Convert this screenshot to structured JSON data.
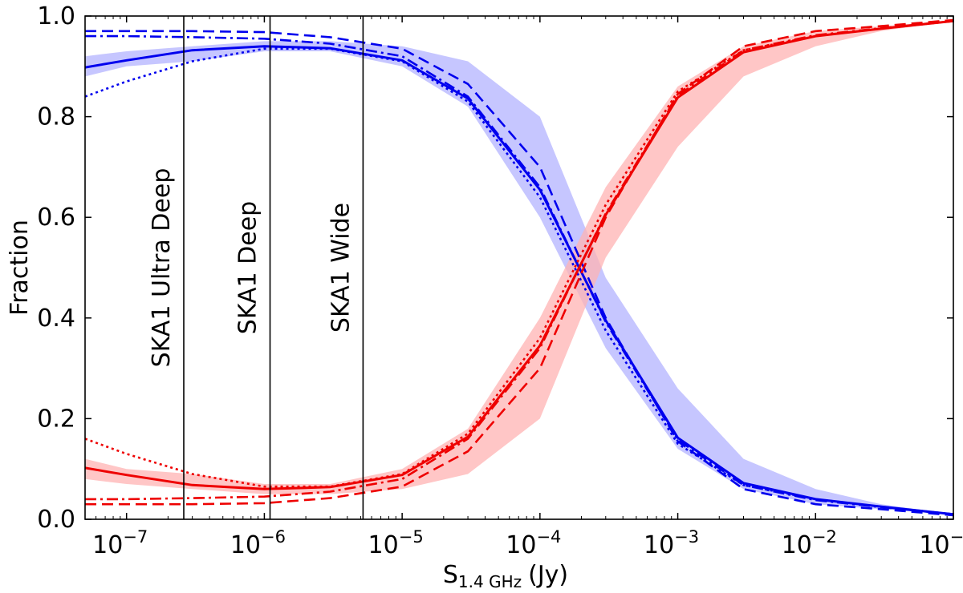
{
  "chart_data": {
    "type": "line",
    "xscale": "log",
    "xlim": [
      5e-08,
      0.1
    ],
    "ylim": [
      0,
      1
    ],
    "xlabel_main": "S",
    "xlabel_sub": "1.4 GHz",
    "xlabel_unit": "(Jy)",
    "ylabel": "Fraction",
    "x_ticks": [
      {
        "value": 1e-07,
        "base": "10",
        "exp": "−7"
      },
      {
        "value": 1e-06,
        "base": "10",
        "exp": "−6"
      },
      {
        "value": 1e-05,
        "base": "10",
        "exp": "−5"
      },
      {
        "value": 0.0001,
        "base": "10",
        "exp": "−4"
      },
      {
        "value": 0.001,
        "base": "10",
        "exp": "−3"
      },
      {
        "value": 0.01,
        "base": "10",
        "exp": "−2"
      },
      {
        "value": 0.1,
        "base": "10",
        "exp": "−1"
      }
    ],
    "y_ticks": [
      {
        "value": 0.0,
        "label": "0.0"
      },
      {
        "value": 0.2,
        "label": "0.2"
      },
      {
        "value": 0.4,
        "label": "0.4"
      },
      {
        "value": 0.6,
        "label": "0.6"
      },
      {
        "value": 0.8,
        "label": "0.8"
      },
      {
        "value": 1.0,
        "label": "1.0"
      }
    ],
    "survey_limits": [
      {
        "x": 2.6e-07,
        "label": "SKA1 Ultra Deep"
      },
      {
        "x": 1.1e-06,
        "label": "SKA1 Deep"
      },
      {
        "x": 5.2e-06,
        "label": "SKA1 Wide"
      }
    ],
    "x": [
      5e-08,
      1e-07,
      3e-07,
      1e-06,
      3e-06,
      1e-05,
      3e-05,
      0.0001,
      0.0003,
      0.001,
      0.003,
      0.01,
      0.03,
      0.1
    ],
    "colors": {
      "blue": "#0000ee",
      "red": "#ee0000",
      "blue_band": "#b3b3ff",
      "red_band": "#ffb3b3"
    },
    "bands": [
      {
        "color": "blue",
        "lower": [
          0.88,
          0.9,
          0.91,
          0.93,
          0.93,
          0.9,
          0.82,
          0.6,
          0.34,
          0.14,
          0.06,
          0.03,
          0.02,
          0.01
        ],
        "upper": [
          0.92,
          0.93,
          0.94,
          0.95,
          0.95,
          0.94,
          0.91,
          0.8,
          0.48,
          0.26,
          0.12,
          0.06,
          0.03,
          0.01
        ]
      },
      {
        "color": "red",
        "lower": [
          0.08,
          0.07,
          0.06,
          0.05,
          0.05,
          0.06,
          0.09,
          0.2,
          0.52,
          0.74,
          0.88,
          0.94,
          0.97,
          0.99
        ],
        "upper": [
          0.12,
          0.1,
          0.09,
          0.07,
          0.07,
          0.1,
          0.18,
          0.4,
          0.66,
          0.86,
          0.94,
          0.97,
          0.98,
          0.99
        ]
      }
    ],
    "series": [
      {
        "color": "blue",
        "style": "solid",
        "values": [
          0.898,
          0.912,
          0.932,
          0.94,
          0.936,
          0.912,
          0.836,
          0.655,
          0.395,
          0.162,
          0.072,
          0.04,
          0.025,
          0.01
        ]
      },
      {
        "color": "blue",
        "style": "dashed",
        "values": [
          0.97,
          0.97,
          0.97,
          0.968,
          0.958,
          0.935,
          0.865,
          0.7,
          0.4,
          0.155,
          0.06,
          0.03,
          0.02,
          0.008
        ]
      },
      {
        "color": "blue",
        "style": "dashdot",
        "values": [
          0.96,
          0.96,
          0.958,
          0.955,
          0.945,
          0.92,
          0.84,
          0.66,
          0.392,
          0.158,
          0.068,
          0.038,
          0.024,
          0.01
        ]
      },
      {
        "color": "blue",
        "style": "dotted",
        "values": [
          0.84,
          0.87,
          0.91,
          0.935,
          0.935,
          0.91,
          0.83,
          0.64,
          0.375,
          0.15,
          0.068,
          0.04,
          0.025,
          0.01
        ]
      },
      {
        "color": "red",
        "style": "solid",
        "values": [
          0.102,
          0.088,
          0.068,
          0.06,
          0.064,
          0.088,
          0.164,
          0.345,
          0.605,
          0.838,
          0.928,
          0.96,
          0.975,
          0.99
        ]
      },
      {
        "color": "red",
        "style": "dashed",
        "values": [
          0.03,
          0.03,
          0.03,
          0.032,
          0.042,
          0.065,
          0.135,
          0.3,
          0.6,
          0.845,
          0.94,
          0.97,
          0.98,
          0.992
        ]
      },
      {
        "color": "red",
        "style": "dashdot",
        "values": [
          0.04,
          0.04,
          0.042,
          0.045,
          0.055,
          0.08,
          0.16,
          0.34,
          0.608,
          0.842,
          0.932,
          0.962,
          0.976,
          0.99
        ]
      },
      {
        "color": "red",
        "style": "dotted",
        "values": [
          0.16,
          0.13,
          0.09,
          0.065,
          0.065,
          0.09,
          0.17,
          0.36,
          0.625,
          0.85,
          0.932,
          0.96,
          0.975,
          0.99
        ]
      }
    ]
  }
}
